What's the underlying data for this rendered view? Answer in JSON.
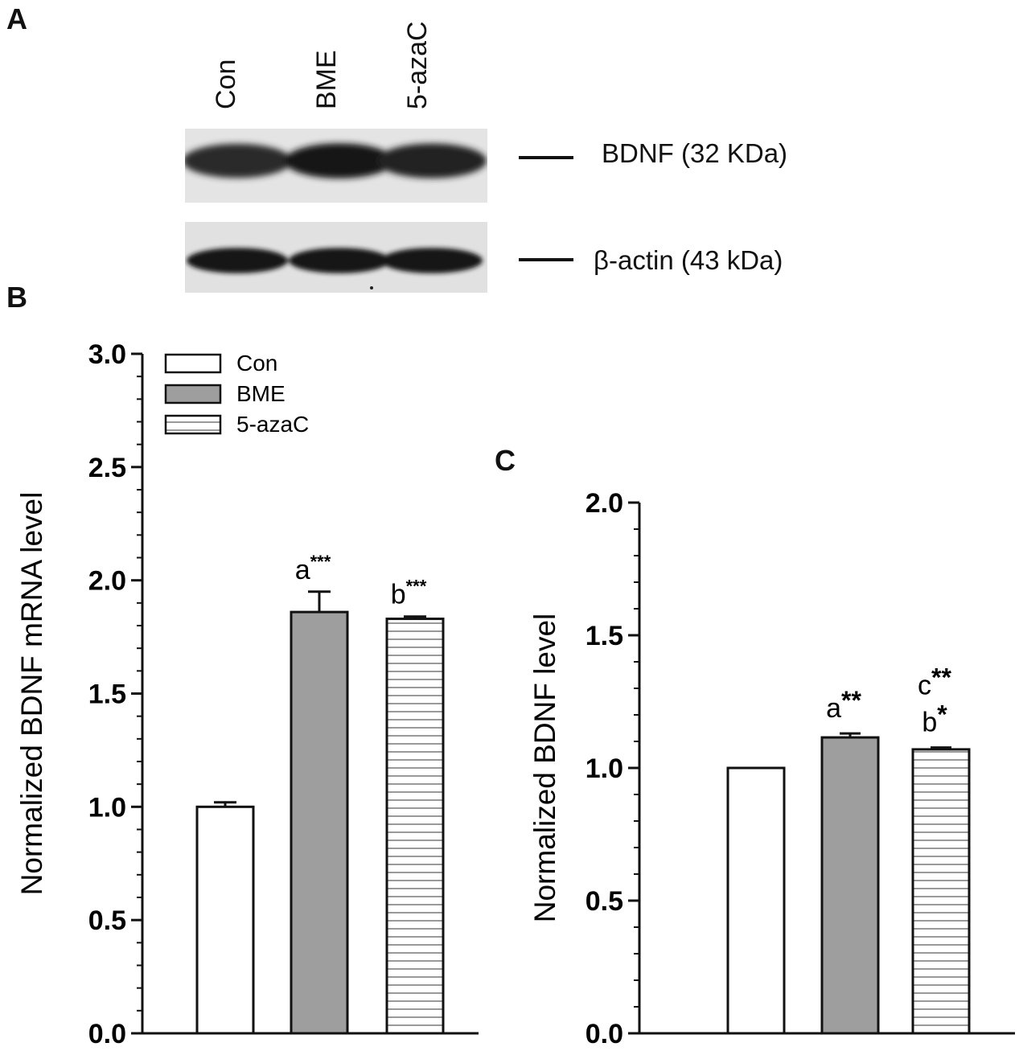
{
  "panels": {
    "a": {
      "letter": "A",
      "lanes": [
        "Con",
        "BME",
        "5-azaC"
      ],
      "bands": [
        {
          "label": "BDNF (32 KDa)",
          "intensity": [
            0.85,
            0.95,
            0.9
          ]
        },
        {
          "label": "β-actin (43 kDa)",
          "intensity": [
            0.95,
            0.95,
            0.95
          ]
        }
      ]
    },
    "b": {
      "letter": "B"
    },
    "c": {
      "letter": "C"
    }
  },
  "chart_data": [
    {
      "panel": "B",
      "type": "bar",
      "categories": [
        "Con",
        "BME",
        "5-azaC"
      ],
      "values": [
        1.0,
        1.86,
        1.83
      ],
      "errors": [
        0.02,
        0.09,
        0.01
      ],
      "annotations": [
        {
          "base": "",
          "sup": ""
        },
        {
          "base": "a",
          "sup": "***"
        },
        {
          "base": "b",
          "sup": "***"
        }
      ],
      "xlabel": "",
      "ylabel": "Normalized BDNF mRNA level",
      "ylim": [
        0,
        3.0
      ],
      "yticks": [
        "0.0",
        "0.5",
        "1.0",
        "1.5",
        "2.0",
        "2.5",
        "3.0"
      ],
      "legend": {
        "placement": "top-left",
        "entries": [
          "Con",
          "BME",
          "5-azaC"
        ]
      },
      "fills": {
        "Con": "#ffffff",
        "BME": "#9e9e9e",
        "5-azaC": "stripes"
      },
      "grid": false
    },
    {
      "panel": "C",
      "type": "bar",
      "categories": [
        "Con",
        "BME",
        "5-azaC"
      ],
      "values": [
        1.0,
        1.115,
        1.07
      ],
      "errors": [
        0.0,
        0.015,
        0.007
      ],
      "annotations": [
        {
          "lines": []
        },
        {
          "lines": [
            {
              "base": "a",
              "sup": "**"
            }
          ]
        },
        {
          "lines": [
            {
              "base": "c",
              "sup": "**"
            },
            {
              "base": "b",
              "sup": "*"
            }
          ]
        }
      ],
      "xlabel": "",
      "ylabel": "Normalized BDNF level",
      "ylim": [
        0,
        2.0
      ],
      "yticks": [
        "0.0",
        "0.5",
        "1.0",
        "1.5",
        "2.0"
      ],
      "fills": {
        "Con": "#ffffff",
        "BME": "#9e9e9e",
        "5-azaC": "stripes"
      },
      "grid": false
    }
  ]
}
